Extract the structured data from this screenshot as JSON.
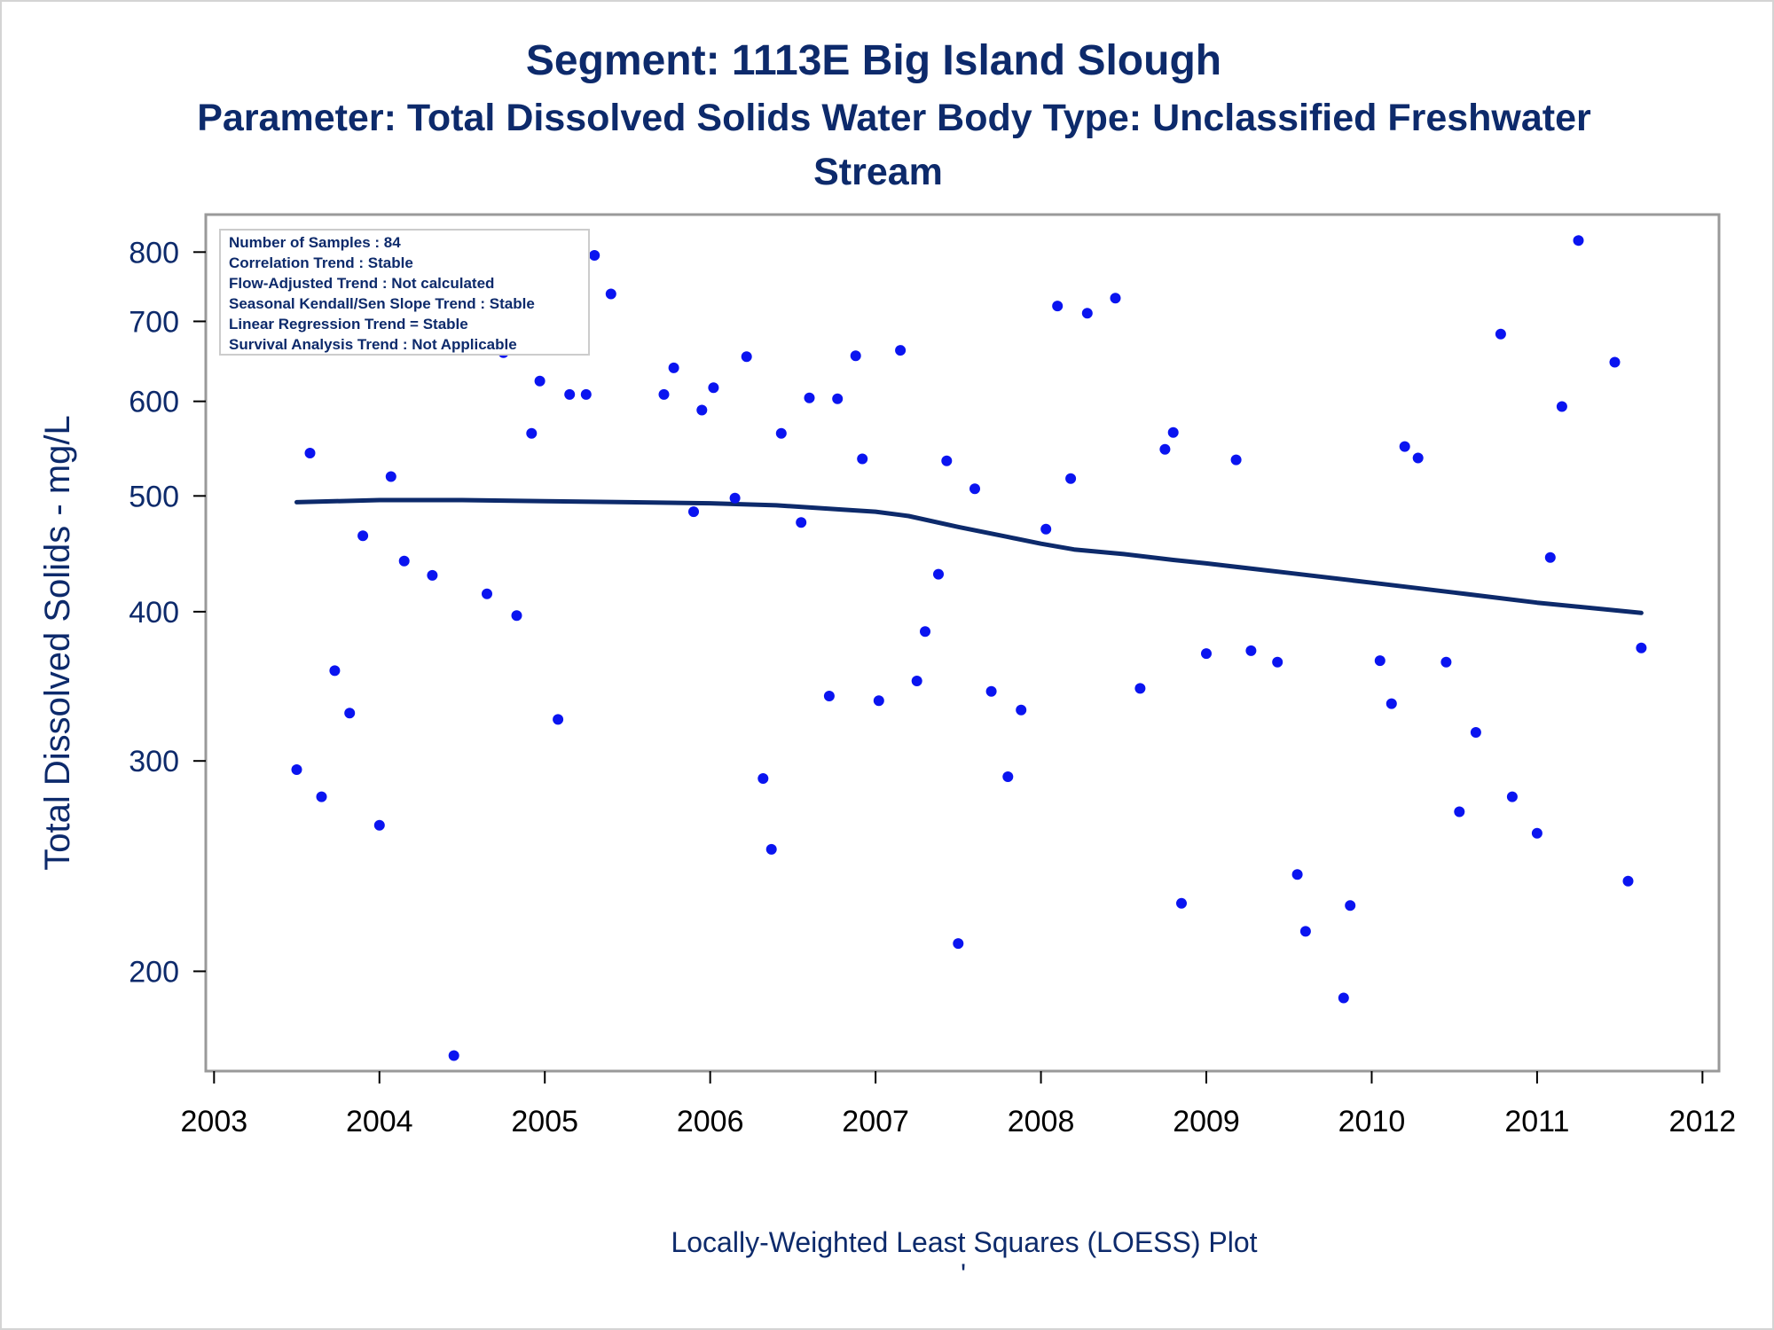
{
  "colors": {
    "title": "#0d2a6b",
    "points": "#0a14f0",
    "loess": "#0d2a6b",
    "frame": "#999999"
  },
  "title": {
    "line1": "Segment: 1113E  Big Island Slough",
    "line2": "Parameter: Total Dissolved Solids   Water Body Type: Unclassified Freshwater",
    "line3": "Stream"
  },
  "stats_box": [
    "Number of Samples : 84",
    "Correlation Trend : Stable",
    "Flow-Adjusted Trend : Not calculated",
    "Seasonal Kendall/Sen Slope Trend : Stable",
    "Linear Regression Trend = Stable",
    "Survival Analysis Trend : Not Applicable"
  ],
  "footer": {
    "caption": "Locally-Weighted Least Squares (LOESS) Plot",
    "mark": "'"
  },
  "chart_data": {
    "type": "scatter",
    "ylabel": "Total Dissolved Solids - mg/L",
    "xlabel": "",
    "yscale": "log",
    "xlim": [
      2002.95,
      2012.1
    ],
    "ylim": [
      165,
      860
    ],
    "xticks": [
      2003,
      2004,
      2005,
      2006,
      2007,
      2008,
      2009,
      2010,
      2011,
      2012
    ],
    "yticks": [
      200,
      300,
      400,
      500,
      600,
      700,
      800
    ],
    "legend": "top-left",
    "grid": false,
    "series": [
      {
        "type": "scatter",
        "points": [
          [
            2003.5,
            295
          ],
          [
            2003.58,
            543
          ],
          [
            2003.65,
            280
          ],
          [
            2003.73,
            357
          ],
          [
            2003.82,
            329
          ],
          [
            2003.9,
            463
          ],
          [
            2004.0,
            265
          ],
          [
            2004.07,
            519
          ],
          [
            2004.15,
            441
          ],
          [
            2004.23,
            785
          ],
          [
            2004.32,
            429
          ],
          [
            2004.37,
            672
          ],
          [
            2004.45,
            170
          ],
          [
            2004.53,
            696
          ],
          [
            2004.65,
            414
          ],
          [
            2004.75,
            659
          ],
          [
            2004.83,
            397
          ],
          [
            2004.92,
            564
          ],
          [
            2004.97,
            624
          ],
          [
            2005.08,
            325
          ],
          [
            2005.15,
            608
          ],
          [
            2005.25,
            608
          ],
          [
            2005.3,
            795
          ],
          [
            2005.4,
            738
          ],
          [
            2005.72,
            608
          ],
          [
            2005.78,
            640
          ],
          [
            2005.9,
            485
          ],
          [
            2005.95,
            590
          ],
          [
            2006.02,
            616
          ],
          [
            2006.15,
            498
          ],
          [
            2006.22,
            654
          ],
          [
            2006.32,
            290
          ],
          [
            2006.37,
            253
          ],
          [
            2006.43,
            564
          ],
          [
            2006.55,
            475
          ],
          [
            2006.6,
            604
          ],
          [
            2006.72,
            340
          ],
          [
            2006.77,
            603
          ],
          [
            2006.88,
            655
          ],
          [
            2006.92,
            537
          ],
          [
            2007.02,
            337
          ],
          [
            2007.15,
            662
          ],
          [
            2007.25,
            350
          ],
          [
            2007.3,
            385
          ],
          [
            2007.38,
            430
          ],
          [
            2007.43,
            535
          ],
          [
            2007.5,
            211
          ],
          [
            2007.6,
            507
          ],
          [
            2007.7,
            343
          ],
          [
            2007.8,
            291
          ],
          [
            2007.88,
            331
          ],
          [
            2008.03,
            469
          ],
          [
            2008.1,
            721
          ],
          [
            2008.18,
            517
          ],
          [
            2008.28,
            711
          ],
          [
            2008.45,
            732
          ],
          [
            2008.6,
            345
          ],
          [
            2008.75,
            547
          ],
          [
            2008.8,
            565
          ],
          [
            2008.85,
            228
          ],
          [
            2009.0,
            369
          ],
          [
            2009.18,
            536
          ],
          [
            2009.27,
            371
          ],
          [
            2009.43,
            363
          ],
          [
            2009.55,
            241
          ],
          [
            2009.6,
            216
          ],
          [
            2009.83,
            190
          ],
          [
            2009.87,
            227
          ],
          [
            2010.05,
            364
          ],
          [
            2010.12,
            335
          ],
          [
            2010.2,
            550
          ],
          [
            2010.28,
            538
          ],
          [
            2010.45,
            363
          ],
          [
            2010.53,
            272
          ],
          [
            2010.63,
            317
          ],
          [
            2010.78,
            683
          ],
          [
            2010.85,
            280
          ],
          [
            2011.0,
            261
          ],
          [
            2011.08,
            444
          ],
          [
            2011.15,
            594
          ],
          [
            2011.25,
            818
          ],
          [
            2011.47,
            647
          ],
          [
            2011.55,
            238
          ],
          [
            2011.63,
            373
          ]
        ]
      },
      {
        "type": "line",
        "points": [
          [
            2003.5,
            494
          ],
          [
            2004.0,
            496
          ],
          [
            2004.5,
            496
          ],
          [
            2005.0,
            495
          ],
          [
            2005.5,
            494
          ],
          [
            2006.0,
            493
          ],
          [
            2006.4,
            491
          ],
          [
            2006.8,
            487
          ],
          [
            2007.0,
            485
          ],
          [
            2007.2,
            481
          ],
          [
            2007.5,
            471
          ],
          [
            2007.8,
            462
          ],
          [
            2008.0,
            456
          ],
          [
            2008.2,
            451
          ],
          [
            2008.5,
            447
          ],
          [
            2008.8,
            442
          ],
          [
            2009.0,
            439
          ],
          [
            2009.5,
            431
          ],
          [
            2010.0,
            423
          ],
          [
            2010.5,
            415
          ],
          [
            2011.0,
            407
          ],
          [
            2011.63,
            399
          ]
        ]
      }
    ]
  }
}
